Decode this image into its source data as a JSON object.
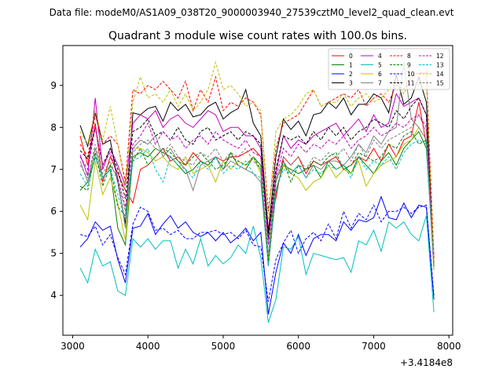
{
  "header": {
    "suptitle": "Data file: modeM0/AS1A09_038T20_9000003940_27539cztM0_level2_quad_clean.evt"
  },
  "chart_data": {
    "type": "line",
    "title": "Quadrant 3 module wise count rates with 100.0s bins.",
    "xlabel": "",
    "ylabel": "",
    "x_offset_label": "+3.4184e8",
    "xlim": [
      2870,
      8050
    ],
    "ylim": [
      3.05,
      9.95
    ],
    "xticks": [
      3000,
      4000,
      5000,
      6000,
      7000,
      8000
    ],
    "xtick_labels": [
      "3000",
      "4000",
      "5000",
      "6000",
      "7000",
      "8000"
    ],
    "yticks": [
      4,
      5,
      6,
      7,
      8,
      9
    ],
    "ytick_labels": [
      "4",
      "5",
      "6",
      "7",
      "8",
      "9"
    ],
    "grid": false,
    "legend_position": "top-right",
    "legend_columns": 4,
    "x": [
      3100,
      3200,
      3300,
      3400,
      3500,
      3600,
      3700,
      3800,
      3900,
      4000,
      4100,
      4200,
      4300,
      4400,
      4500,
      4600,
      4700,
      4800,
      4900,
      5000,
      5100,
      5200,
      5300,
      5400,
      5500,
      5600,
      5700,
      5800,
      5900,
      6000,
      6100,
      6200,
      6300,
      6400,
      6500,
      6600,
      6700,
      6800,
      6900,
      7000,
      7100,
      7200,
      7300,
      7400,
      7500,
      7600,
      7700,
      7800
    ],
    "series": [
      {
        "name": "0",
        "color": "#ff0000",
        "dash": "solid",
        "values": [
          7.8,
          7.1,
          8.1,
          6.7,
          7.3,
          6.9,
          6.5,
          6.2,
          7.0,
          7.1,
          7.3,
          7.5,
          7.2,
          7.3,
          7.1,
          7.4,
          7.2,
          7.1,
          7.3,
          7.2,
          7.3,
          7.3,
          7.4,
          7.5,
          7.3,
          5.6,
          6.3,
          7.3,
          7.1,
          7.3,
          6.9,
          7.2,
          7.1,
          7.2,
          7.3,
          7.0,
          7.1,
          7.3,
          7.2,
          7.5,
          7.2,
          7.6,
          7.3,
          7.7,
          7.8,
          8.6,
          7.6,
          4.6
        ]
      },
      {
        "name": "1",
        "color": "#008000",
        "dash": "solid",
        "values": [
          6.5,
          6.7,
          7.3,
          6.8,
          7.0,
          5.6,
          5.2,
          7.3,
          7.4,
          7.3,
          7.5,
          7.4,
          7.3,
          7.1,
          6.9,
          7.0,
          7.2,
          7.1,
          7.3,
          7.0,
          7.4,
          7.1,
          7.0,
          7.3,
          7.1,
          4.7,
          6.5,
          7.1,
          7.0,
          6.9,
          7.0,
          7.1,
          6.8,
          7.2,
          7.0,
          7.1,
          6.9,
          7.3,
          7.1,
          6.9,
          7.2,
          7.4,
          7.1,
          7.5,
          7.7,
          7.9,
          7.5,
          4.8
        ]
      },
      {
        "name": "2",
        "color": "#0000ff",
        "dash": "solid",
        "values": [
          5.15,
          5.35,
          5.75,
          5.55,
          5.65,
          4.85,
          4.3,
          5.6,
          5.65,
          5.95,
          5.45,
          5.7,
          5.9,
          5.6,
          5.75,
          5.5,
          5.4,
          5.5,
          5.3,
          5.5,
          5.25,
          5.4,
          5.6,
          5.3,
          5.5,
          3.55,
          4.55,
          5.25,
          5.0,
          5.45,
          4.95,
          5.35,
          5.45,
          5.45,
          5.3,
          5.75,
          5.55,
          5.8,
          5.75,
          5.85,
          6.35,
          5.85,
          5.8,
          6.2,
          5.85,
          6.15,
          6.1,
          3.9
        ]
      },
      {
        "name": "3",
        "color": "#000000",
        "dash": "solid",
        "values": [
          8.05,
          7.55,
          8.35,
          7.6,
          7.7,
          6.7,
          5.7,
          8.35,
          8.3,
          8.45,
          8.5,
          8.15,
          8.6,
          8.4,
          8.55,
          8.25,
          8.3,
          8.5,
          8.6,
          8.2,
          8.35,
          8.45,
          8.9,
          8.1,
          7.8,
          5.5,
          7.3,
          8.2,
          7.95,
          8.15,
          7.8,
          8.3,
          8.35,
          8.6,
          8.45,
          8.7,
          8.3,
          8.55,
          8.55,
          8.8,
          8.7,
          8.35,
          9.25,
          8.55,
          8.7,
          9.2,
          8.6,
          4.7
        ]
      },
      {
        "name": "4",
        "color": "#c000c0",
        "dash": "solid",
        "values": [
          7.35,
          6.85,
          8.7,
          7.0,
          7.5,
          7.1,
          6.6,
          8.1,
          8.3,
          8.2,
          8.4,
          8.0,
          8.2,
          8.3,
          8.1,
          8.0,
          8.2,
          8.4,
          8.3,
          7.9,
          8.0,
          8.0,
          7.8,
          7.8,
          7.5,
          5.3,
          6.9,
          7.8,
          7.5,
          7.7,
          7.6,
          7.8,
          7.9,
          8.0,
          8.1,
          7.8,
          8.0,
          8.2,
          7.9,
          8.3,
          8.0,
          8.1,
          8.8,
          8.5,
          8.6,
          8.7,
          8.3,
          4.9
        ]
      },
      {
        "name": "5",
        "color": "#00bfbf",
        "dash": "solid",
        "values": [
          4.65,
          4.3,
          5.1,
          4.7,
          4.8,
          4.1,
          4.0,
          5.35,
          5.15,
          5.35,
          5.1,
          5.3,
          5.3,
          4.65,
          5.1,
          4.75,
          5.35,
          4.7,
          4.95,
          4.75,
          4.9,
          5.2,
          5.0,
          5.65,
          4.9,
          3.35,
          3.9,
          5.15,
          5.1,
          5.4,
          4.5,
          5.0,
          4.95,
          4.9,
          4.85,
          4.9,
          4.55,
          5.3,
          5.2,
          5.55,
          5.05,
          5.75,
          5.6,
          5.75,
          5.45,
          5.3,
          5.9,
          3.6
        ]
      },
      {
        "name": "6",
        "color": "#bfbf00",
        "dash": "solid",
        "values": [
          6.15,
          5.8,
          7.2,
          6.4,
          6.8,
          6.2,
          5.3,
          7.5,
          7.5,
          7.4,
          7.2,
          7.3,
          7.1,
          7.0,
          7.3,
          6.9,
          7.0,
          7.1,
          6.7,
          7.2,
          7.0,
          7.2,
          7.1,
          7.3,
          6.9,
          4.9,
          6.8,
          7.1,
          6.9,
          6.8,
          6.5,
          6.7,
          6.8,
          7.1,
          6.8,
          7.0,
          6.9,
          7.2,
          6.6,
          6.9,
          7.1,
          7.2,
          7.3,
          7.6,
          7.7,
          8.0,
          7.7,
          4.6
        ]
      },
      {
        "name": "7",
        "color": "#808080",
        "dash": "solid",
        "values": [
          7.2,
          6.7,
          7.5,
          6.8,
          7.1,
          6.8,
          5.6,
          7.5,
          7.7,
          7.6,
          7.8,
          7.3,
          7.5,
          7.2,
          7.0,
          6.5,
          7.1,
          7.2,
          7.3,
          7.0,
          7.2,
          7.1,
          7.0,
          6.9,
          6.7,
          4.7,
          6.4,
          7.2,
          6.9,
          7.1,
          6.8,
          7.1,
          7.0,
          7.2,
          7.2,
          7.1,
          7.3,
          7.6,
          7.4,
          7.8,
          7.6,
          7.9,
          8.0,
          9.55,
          8.2,
          8.0,
          7.7,
          4.7
        ]
      },
      {
        "name": "8",
        "color": "#ff0000",
        "dash": "dashed",
        "values": [
          7.6,
          7.3,
          8.3,
          7.6,
          7.8,
          7.6,
          6.7,
          8.9,
          8.8,
          9.0,
          8.9,
          9.1,
          8.9,
          8.7,
          9.1,
          8.4,
          8.9,
          8.6,
          9.2,
          8.4,
          8.6,
          8.5,
          8.7,
          8.6,
          8.3,
          6.0,
          7.5,
          8.1,
          8.2,
          8.3,
          8.6,
          8.9,
          8.5,
          8.6,
          8.7,
          8.8,
          8.7,
          8.9,
          8.5,
          8.7,
          8.8,
          8.6,
          9.0,
          8.9,
          9.2,
          9.3,
          9.3,
          4.9
        ]
      },
      {
        "name": "9",
        "color": "#008000",
        "dash": "dashed",
        "values": [
          6.6,
          6.5,
          7.4,
          6.6,
          7.1,
          6.1,
          5.9,
          7.2,
          7.5,
          7.1,
          7.3,
          7.5,
          7.4,
          7.2,
          7.1,
          7.3,
          7.4,
          7.2,
          7.0,
          7.1,
          7.3,
          7.2,
          7.1,
          7.3,
          7.0,
          4.8,
          6.7,
          7.2,
          6.7,
          7.1,
          7.0,
          7.2,
          7.1,
          7.3,
          7.4,
          7.0,
          7.1,
          7.4,
          7.3,
          7.2,
          7.3,
          7.6,
          7.5,
          7.8,
          7.9,
          7.6,
          7.7,
          4.8
        ]
      },
      {
        "name": "10",
        "color": "#0000ff",
        "dash": "dashed",
        "values": [
          5.45,
          5.4,
          5.65,
          5.2,
          5.45,
          4.9,
          4.5,
          5.7,
          6.1,
          6.0,
          5.55,
          5.6,
          5.45,
          5.55,
          5.35,
          5.35,
          5.5,
          5.5,
          5.55,
          5.45,
          5.5,
          5.35,
          5.55,
          5.2,
          5.15,
          3.85,
          4.85,
          5.25,
          5.55,
          5.0,
          5.35,
          5.5,
          5.3,
          5.7,
          5.35,
          6.0,
          5.6,
          5.95,
          5.8,
          6.15,
          5.75,
          6.0,
          6.0,
          6.1,
          5.95,
          6.1,
          6.15,
          4.0
        ]
      },
      {
        "name": "11",
        "color": "#000000",
        "dash": "dashed",
        "values": [
          7.45,
          7.25,
          8.0,
          7.1,
          7.5,
          7.0,
          6.3,
          7.9,
          8.0,
          8.2,
          7.8,
          7.9,
          7.7,
          8.0,
          7.7,
          7.6,
          7.9,
          8.0,
          7.7,
          7.8,
          7.9,
          7.7,
          7.9,
          7.8,
          7.6,
          5.4,
          7.0,
          7.8,
          7.7,
          7.8,
          7.6,
          7.9,
          7.7,
          8.0,
          7.8,
          8.0,
          7.7,
          7.9,
          8.0,
          8.2,
          8.1,
          8.0,
          8.4,
          8.2,
          8.5,
          8.7,
          8.3,
          4.7
        ]
      },
      {
        "name": "12",
        "color": "#c000c0",
        "dash": "dashed",
        "values": [
          7.3,
          7.0,
          8.0,
          7.1,
          7.4,
          6.8,
          6.1,
          7.6,
          7.8,
          8.1,
          7.6,
          7.9,
          7.7,
          7.8,
          7.5,
          7.7,
          7.8,
          7.6,
          7.9,
          7.7,
          7.6,
          7.5,
          7.7,
          7.4,
          7.3,
          5.2,
          6.8,
          7.5,
          7.3,
          7.6,
          7.4,
          7.6,
          7.5,
          7.7,
          7.6,
          7.8,
          7.5,
          7.7,
          7.8,
          8.0,
          7.8,
          7.9,
          8.1,
          8.0,
          8.2,
          8.3,
          8.0,
          4.8
        ]
      },
      {
        "name": "13",
        "color": "#00bfbf",
        "dash": "dashed",
        "values": [
          6.9,
          6.6,
          7.3,
          6.8,
          7.0,
          6.4,
          5.8,
          7.2,
          7.3,
          7.5,
          7.0,
          6.7,
          7.3,
          7.1,
          7.0,
          6.8,
          7.2,
          7.0,
          7.3,
          6.9,
          7.1,
          7.0,
          7.2,
          6.9,
          6.8,
          4.7,
          6.5,
          7.0,
          6.9,
          7.1,
          6.8,
          7.0,
          6.9,
          7.1,
          7.0,
          7.1,
          6.8,
          7.3,
          7.0,
          7.2,
          7.1,
          7.3,
          7.0,
          7.4,
          7.6,
          7.7,
          7.6,
          4.7
        ]
      },
      {
        "name": "14",
        "color": "#bfbf00",
        "dash": "dashed",
        "values": [
          7.9,
          7.6,
          8.4,
          7.7,
          8.5,
          7.6,
          6.6,
          8.6,
          9.2,
          8.7,
          8.8,
          8.6,
          8.9,
          8.5,
          8.8,
          8.4,
          8.6,
          8.9,
          9.55,
          8.9,
          9.0,
          8.8,
          8.5,
          8.6,
          8.4,
          5.8,
          7.9,
          8.2,
          8.3,
          8.5,
          8.8,
          8.9,
          8.5,
          8.6,
          8.6,
          8.8,
          8.5,
          8.7,
          8.8,
          8.6,
          8.7,
          8.9,
          9.1,
          8.8,
          9.2,
          9.0,
          9.2,
          4.8
        ]
      },
      {
        "name": "15",
        "color": "#808080",
        "dash": "dashed",
        "values": [
          7.1,
          6.8,
          7.6,
          6.9,
          7.2,
          6.7,
          6.0,
          7.4,
          7.6,
          7.7,
          7.5,
          7.4,
          7.6,
          7.3,
          7.2,
          7.1,
          7.4,
          7.3,
          7.5,
          7.2,
          7.4,
          7.3,
          7.5,
          7.2,
          7.0,
          5.0,
          6.7,
          7.3,
          7.1,
          7.3,
          7.0,
          7.3,
          7.2,
          7.4,
          7.3,
          7.5,
          7.2,
          7.6,
          7.3,
          7.7,
          7.5,
          7.7,
          7.8,
          7.9,
          8.0,
          8.3,
          7.9,
          4.7
        ]
      }
    ]
  }
}
